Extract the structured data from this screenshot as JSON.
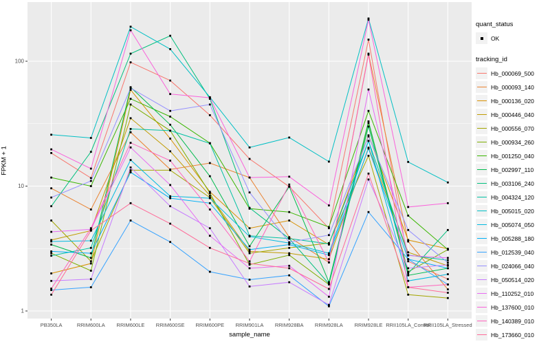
{
  "chart_data": {
    "type": "line",
    "xlabel": "sample_name",
    "ylabel": "FPKM + 1",
    "y_scale": "log10",
    "y_ticks": [
      1,
      10,
      100
    ],
    "y_minor_ticks": [
      3.1623,
      31.623
    ],
    "ylim": [
      1,
      286
    ],
    "grid": true,
    "panel_bg": "#EBEBEB",
    "grid_color": "#FFFFFF",
    "tick_label_color": "#4D4D4D",
    "tick_mark_color": "#333333",
    "point_color": "#000000",
    "legend_position": "right",
    "categories": [
      "PB350LA",
      "RRIM600LA",
      "RRIM600LE",
      "RRIM600SE",
      "RRIM600PE",
      "RRIM901LA",
      "RRIM928BA",
      "RRIM928LA",
      "RRIM928LE",
      "RRII105LA_Control",
      "RRII105LA_Stressed"
    ],
    "series": [
      {
        "name": "Hb_000069_500",
        "color": "#F8766D",
        "values": [
          18.4,
          11.6,
          98,
          70,
          37,
          16.5,
          9.9,
          4.6,
          149,
          2.5,
          1.8
        ]
      },
      {
        "name": "Hb_000093_140",
        "color": "#EA8331",
        "values": [
          9.6,
          6.5,
          27,
          13.6,
          15.3,
          11.7,
          3.9,
          2.45,
          115,
          3.6,
          1.49
        ]
      },
      {
        "name": "Hb_000136_020",
        "color": "#D89000",
        "values": [
          2.0,
          2.4,
          59,
          24,
          9.0,
          4.6,
          5.3,
          3.4,
          25.5,
          3.7,
          3.15
        ]
      },
      {
        "name": "Hb_000446_040",
        "color": "#C09B00",
        "values": [
          3.7,
          4.4,
          35,
          19,
          8.4,
          3.0,
          2.9,
          2.6,
          20.3,
          2.95,
          2.3
        ]
      },
      {
        "name": "Hb_000556_070",
        "color": "#A3A500",
        "values": [
          5.3,
          2.5,
          13.4,
          13.4,
          8.1,
          2.9,
          3.2,
          3.5,
          17.5,
          1.35,
          1.27
        ]
      },
      {
        "name": "Hb_000934_260",
        "color": "#7CAE00",
        "values": [
          2.9,
          2.1,
          45,
          27.8,
          8.8,
          2.35,
          2.8,
          1.63,
          32,
          2.06,
          3.1
        ]
      },
      {
        "name": "Hb_001250_040",
        "color": "#39B600",
        "values": [
          11.7,
          10.0,
          50,
          36,
          22.1,
          6.6,
          6.2,
          4.7,
          40,
          5.8,
          3.1
        ]
      },
      {
        "name": "Hb_002997_110",
        "color": "#00BB4E",
        "values": [
          3.4,
          2.66,
          62,
          31,
          12,
          3.3,
          9.9,
          1.7,
          33,
          1.93,
          2.2
        ]
      },
      {
        "name": "Hb_003106_240",
        "color": "#00BF7D",
        "values": [
          6.9,
          18.8,
          115,
          160,
          50,
          6.7,
          3.8,
          1.65,
          30,
          2.0,
          4.45
        ]
      },
      {
        "name": "Hb_004324_120",
        "color": "#00C1A3",
        "values": [
          2.77,
          3.2,
          28.7,
          27.8,
          22,
          4.0,
          3.8,
          3.45,
          23,
          2.8,
          2.55
        ]
      },
      {
        "name": "Hb_005015_020",
        "color": "#00BFC4",
        "values": [
          25.8,
          24.3,
          189,
          125,
          51.5,
          20.4,
          24.5,
          15.7,
          220,
          15.6,
          10.7
        ]
      },
      {
        "name": "Hb_005074_050",
        "color": "#00BAE0",
        "values": [
          3.6,
          3.65,
          16.2,
          8.3,
          8.0,
          3.95,
          3.5,
          2.9,
          23,
          1.74,
          1.97
        ]
      },
      {
        "name": "Hb_005288_180",
        "color": "#00B0F6",
        "values": [
          3.0,
          2.9,
          12.9,
          8.0,
          7.3,
          3.1,
          3.4,
          2.8,
          20,
          2.6,
          2.2
        ]
      },
      {
        "name": "Hb_012539_040",
        "color": "#35A2FF",
        "values": [
          1.47,
          1.55,
          5.3,
          3.57,
          2.06,
          1.78,
          1.93,
          1.09,
          6.2,
          2.6,
          1.63
        ]
      },
      {
        "name": "Hb_024066_040",
        "color": "#9590FF",
        "values": [
          8.1,
          11.0,
          61,
          40,
          45,
          8.9,
          3.55,
          4.05,
          25,
          4.45,
          2.44
        ]
      },
      {
        "name": "Hb_050514_020",
        "color": "#C77CFF",
        "values": [
          1.74,
          1.8,
          14.1,
          6.9,
          4.6,
          1.57,
          1.7,
          1.12,
          11.3,
          2.2,
          2.34
        ]
      },
      {
        "name": "Hb_110252_010",
        "color": "#E76BF3",
        "values": [
          4.3,
          4.5,
          20.4,
          10.2,
          4.0,
          2.2,
          2.3,
          1.3,
          59.4,
          2.78,
          2.66
        ]
      },
      {
        "name": "Hb_137600_010",
        "color": "#FA62DB",
        "values": [
          19.7,
          13.8,
          177,
          54.6,
          51,
          11.7,
          11.9,
          7.0,
          215,
          6.8,
          7.3
        ]
      },
      {
        "name": "Hb_140389_010",
        "color": "#FF62BC",
        "values": [
          1.51,
          4.6,
          22.2,
          16,
          6.5,
          2.5,
          10.3,
          2.45,
          113,
          1.55,
          1.63
        ]
      },
      {
        "name": "Hb_173660_010",
        "color": "#FF6A98",
        "values": [
          1.35,
          4.4,
          7.3,
          5.0,
          3.2,
          2.4,
          2.2,
          1.5,
          12.6,
          1.55,
          1.4
        ]
      }
    ],
    "legend": {
      "quant_status_title": "quant_status",
      "quant_status_items": [
        {
          "label": "OK"
        }
      ],
      "tracking_id_title": "tracking_id"
    }
  }
}
